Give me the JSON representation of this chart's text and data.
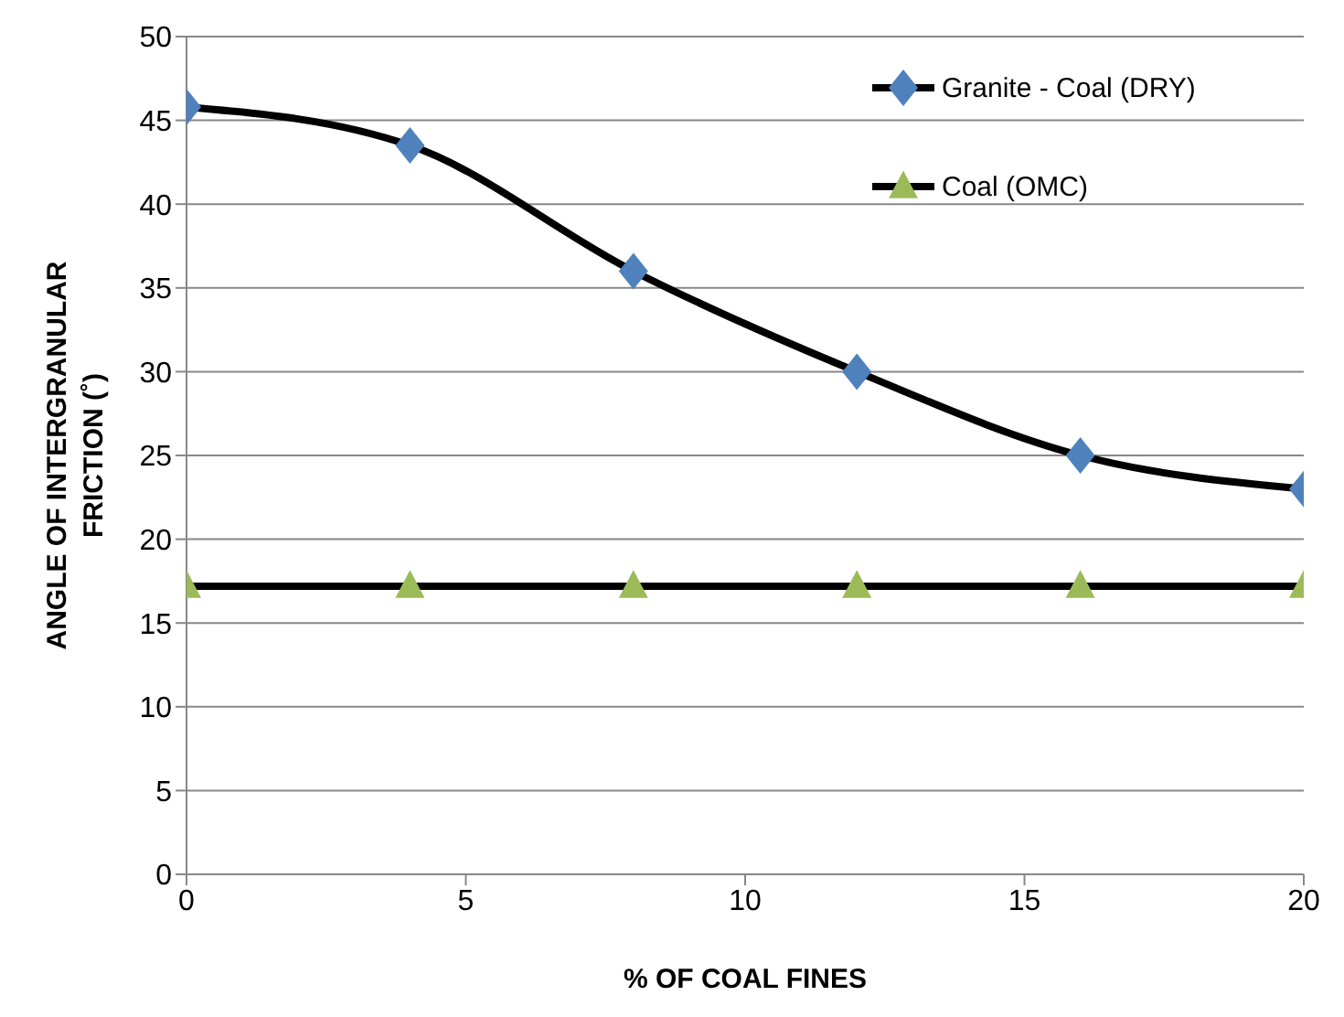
{
  "chart_data": {
    "type": "line",
    "xlabel": "% OF COAL FINES",
    "ylabel": "ANGLE OF INTERGRANULAR FRICTION (˚)",
    "x": [
      0,
      4,
      8,
      12,
      16,
      20
    ],
    "series": [
      {
        "name": "Granite - Coal (DRY)",
        "color": "#4f81bd",
        "marker": "diamond",
        "values": [
          45.8,
          43.5,
          36,
          30,
          25,
          23
        ]
      },
      {
        "name": "Coal (OMC)",
        "color": "#9bbb59",
        "marker": "triangle",
        "values": [
          17.2,
          17.2,
          17.2,
          17.2,
          17.2,
          17.2
        ]
      }
    ],
    "xlim": [
      0,
      20
    ],
    "xticks": [
      0,
      5,
      10,
      15,
      20
    ],
    "ylim": [
      0,
      50
    ],
    "yticks": [
      0,
      5,
      10,
      15,
      20,
      25,
      30,
      35,
      40,
      45,
      50
    ],
    "grid": "y",
    "legend": "top right"
  }
}
